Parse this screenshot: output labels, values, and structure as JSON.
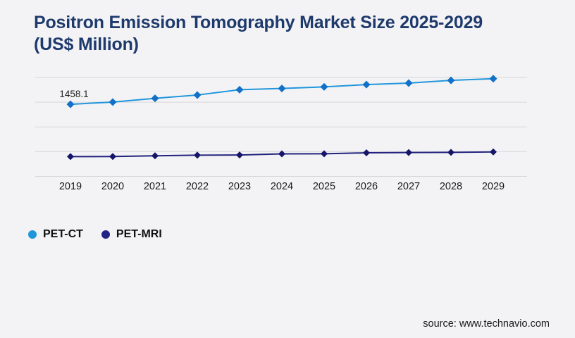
{
  "page": {
    "source": "source: www.technavio.com",
    "background": "#f3f3f5",
    "grid_color": "#d7d7da",
    "text_color": "#1a1a1a",
    "title_color": "#1e3a6c"
  },
  "chart_data": {
    "type": "line",
    "title": "Positron Emission Tomography Market Size 2025-2029 (US$ Million)",
    "xlabel": "",
    "ylabel": "",
    "x": [
      "2019",
      "2020",
      "2021",
      "2022",
      "2023",
      "2024",
      "2025",
      "2026",
      "2027",
      "2028",
      "2029"
    ],
    "series": [
      {
        "name": "PET-CT",
        "line_color": "#2196dc",
        "marker_color": "#1171c8",
        "legend_color": "#1e96d9",
        "marker": "diamond",
        "marker_size": 5.5,
        "values": [
          1458.1,
          1502,
          1578,
          1645,
          1752,
          1778,
          1810,
          1856,
          1886,
          1941,
          1975
        ]
      },
      {
        "name": "PET-MRI",
        "line_color": "#22227e",
        "marker_color": "#161668",
        "legend_color": "#232386",
        "marker": "diamond",
        "marker_size": 5,
        "values": [
          400,
          402,
          416,
          428,
          433,
          455,
          458,
          476,
          482,
          486,
          494
        ]
      }
    ],
    "data_labels": [
      {
        "series": "PET-CT",
        "x": "2019",
        "text": "1458.1"
      }
    ],
    "ylim": [
      0,
      2000
    ],
    "grid": "horizontal",
    "gridline_count": 5,
    "legend_position": "bottom-left",
    "note": "values other than 1458.1 estimated from gridlines at 0/500/1000/1500/2000"
  }
}
